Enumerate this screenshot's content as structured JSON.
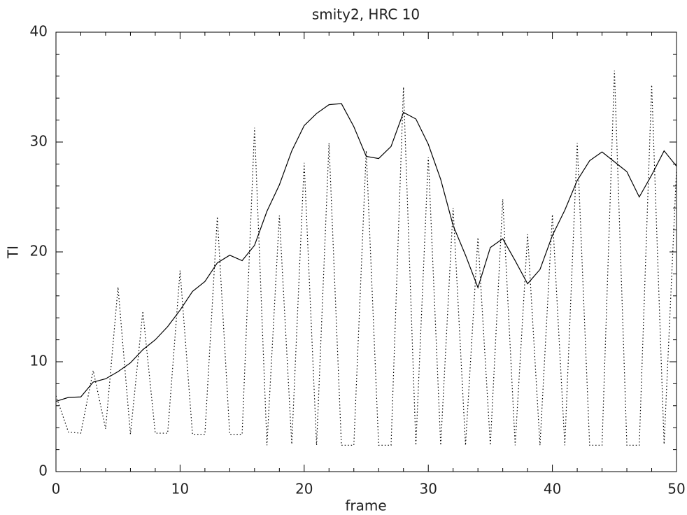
{
  "chart_data": {
    "type": "line",
    "title": "smity2, HRC 10",
    "x_label": "frame",
    "y_label": "TI",
    "x": [
      0,
      1,
      2,
      3,
      4,
      5,
      6,
      7,
      8,
      9,
      10,
      11,
      12,
      13,
      14,
      15,
      16,
      17,
      18,
      19,
      20,
      21,
      22,
      23,
      24,
      25,
      26,
      27,
      28,
      29,
      30,
      31,
      32,
      33,
      34,
      35,
      36,
      37,
      38,
      39,
      40,
      41,
      42,
      43,
      44,
      45,
      46,
      47,
      48,
      49,
      50
    ],
    "series": [
      {
        "color": "#000000",
        "style": "solid",
        "values": [
          6.4,
          6.75,
          6.8,
          8.15,
          8.45,
          9.1,
          9.9,
          11.1,
          12.0,
          13.2,
          14.7,
          16.4,
          17.3,
          19.0,
          19.7,
          19.2,
          20.6,
          23.7,
          26.1,
          29.2,
          31.5,
          32.6,
          33.4,
          33.5,
          31.4,
          28.7,
          28.5,
          29.6,
          32.7,
          32.1,
          29.8,
          26.6,
          22.4,
          19.7,
          16.75,
          20.4,
          21.2,
          19.2,
          17.1,
          18.4,
          21.5,
          23.8,
          26.5,
          28.3,
          29.1,
          28.2,
          27.3,
          25.0,
          27.0,
          29.2,
          27.8
        ]
      },
      {
        "color": "#000000",
        "style": "dotted",
        "values": [
          6.9,
          3.6,
          3.5,
          9.2,
          3.9,
          16.8,
          3.4,
          14.6,
          3.5,
          3.5,
          18.3,
          3.4,
          3.4,
          23.2,
          3.4,
          3.4,
          31.3,
          2.4,
          23.3,
          2.5,
          28.1,
          2.4,
          29.9,
          2.4,
          2.4,
          29.2,
          2.4,
          2.4,
          35.0,
          2.4,
          28.6,
          2.4,
          24.0,
          2.4,
          21.3,
          2.4,
          24.8,
          2.4,
          21.6,
          2.4,
          23.4,
          2.4,
          29.9,
          2.4,
          2.4,
          36.5,
          2.4,
          2.4,
          35.2,
          2.5,
          27.5
        ]
      }
    ],
    "xlim": [
      0,
      50
    ],
    "xticks": [
      0,
      10,
      20,
      30,
      40,
      50
    ],
    "ylim": [
      0,
      40
    ],
    "yticks": [
      0,
      10,
      20,
      30,
      40
    ],
    "minor_ticks": 5,
    "grid": false
  }
}
